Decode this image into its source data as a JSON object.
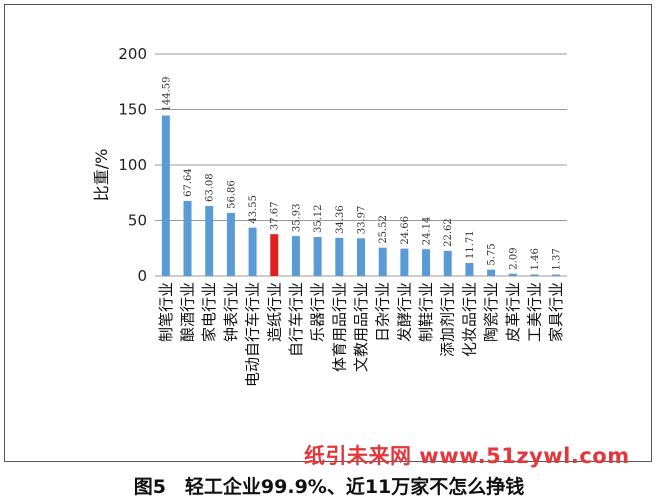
{
  "chart_data": {
    "type": "bar",
    "ylabel": "比重/%",
    "ylim": [
      0,
      200
    ],
    "yticks": [
      0,
      50,
      100,
      150,
      200
    ],
    "categories": [
      "制笔行业",
      "酿酒行业",
      "家电行业",
      "钟表行业",
      "电动自行车行业",
      "造纸行业",
      "自行车行业",
      "乐器行业",
      "体育用品行业",
      "文教用品行业",
      "日杂行业",
      "发酵行业",
      "制鞋行业",
      "添加剂行业",
      "化妆品行业",
      "陶瓷行业",
      "皮革行业",
      "工美行业",
      "家具行业"
    ],
    "values": [
      144.59,
      67.64,
      63.08,
      56.86,
      43.55,
      37.67,
      35.93,
      35.12,
      34.36,
      33.97,
      25.52,
      24.66,
      24.14,
      22.62,
      11.71,
      5.75,
      2.09,
      1.46,
      1.37
    ],
    "value_labels": [
      "144.59",
      "67.64",
      "63.08",
      "56.86",
      "43.55",
      "37.67",
      "35.93",
      "35.12",
      "34.36",
      "33.97",
      "25.52",
      "24.66",
      "24.14",
      "22.62",
      "11.71",
      "5.75",
      "2.09",
      "1.46",
      "1.37"
    ],
    "highlight_index": 5,
    "bar_color": "#5b9bd5",
    "highlight_color": "#e02020",
    "grid": true
  },
  "watermark": "纸引未来网 www.51zywl.com",
  "caption": "图5　轻工企业99.9%、近11万家不怎么挣钱"
}
